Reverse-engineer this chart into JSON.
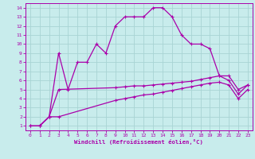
{
  "xlabel": "Windchill (Refroidissement éolien,°C)",
  "xlim": [
    -0.5,
    23.5
  ],
  "ylim": [
    0.5,
    14.5
  ],
  "xticks": [
    0,
    1,
    2,
    3,
    4,
    5,
    6,
    7,
    8,
    9,
    10,
    11,
    12,
    13,
    14,
    15,
    16,
    17,
    18,
    19,
    20,
    21,
    22,
    23
  ],
  "yticks": [
    1,
    2,
    3,
    4,
    5,
    6,
    7,
    8,
    9,
    10,
    11,
    12,
    13,
    14
  ],
  "background_color": "#c8ecec",
  "grid_color": "#a8d4d4",
  "line_color": "#aa00aa",
  "line1_x": [
    0,
    1,
    2,
    3,
    4,
    5,
    6,
    7,
    8,
    9,
    10,
    11,
    12,
    13,
    14,
    15,
    16,
    17,
    18,
    19,
    20,
    21,
    22,
    23
  ],
  "line1_y": [
    1,
    1,
    2,
    9,
    5,
    8,
    8,
    10,
    9,
    12,
    13,
    13,
    13,
    14,
    14,
    13,
    11,
    10,
    10,
    9.5,
    6.5,
    6,
    4.5,
    5.5
  ],
  "line2_x": [
    1,
    2,
    3,
    9,
    10,
    11,
    12,
    13,
    14,
    15,
    16,
    17,
    18,
    19,
    20,
    21,
    22,
    23
  ],
  "line2_y": [
    1,
    2,
    5,
    5.2,
    5.3,
    5.4,
    5.4,
    5.5,
    5.6,
    5.7,
    5.8,
    5.9,
    6.1,
    6.3,
    6.5,
    6.5,
    5,
    5.5
  ],
  "line3_x": [
    0,
    1,
    2,
    3,
    9,
    10,
    11,
    12,
    13,
    14,
    15,
    16,
    17,
    18,
    19,
    20,
    21,
    22,
    23
  ],
  "line3_y": [
    1,
    1,
    2,
    2,
    3.8,
    4.0,
    4.2,
    4.4,
    4.5,
    4.7,
    4.9,
    5.1,
    5.3,
    5.5,
    5.7,
    5.8,
    5.5,
    4,
    5
  ]
}
